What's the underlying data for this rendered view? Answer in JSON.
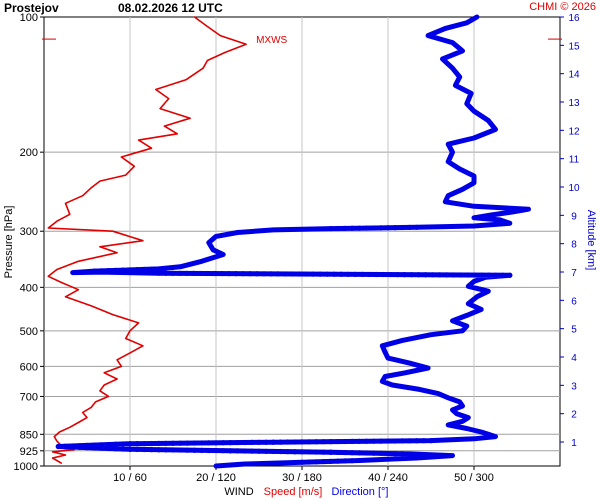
{
  "header": {
    "station": "Prostejov",
    "datetime": "08.02.2026 12 UTC",
    "credit": "CHMI © 2026"
  },
  "chart_data": {
    "type": "line",
    "left_axis": {
      "label": "Pressure [hPa]",
      "ticks": [
        "100",
        "200",
        "300",
        "400",
        "500",
        "600",
        "700",
        "850",
        "925",
        "1000"
      ],
      "scale": "log",
      "range": [
        1000,
        100
      ]
    },
    "right_axis": {
      "label": "Altitude [km]",
      "ticks": [
        "1",
        "2",
        "3",
        "4",
        "5",
        "6",
        "7",
        "8",
        "9",
        "10",
        "11",
        "12",
        "13",
        "14",
        "15",
        "16"
      ]
    },
    "bottom_axis": {
      "ticks": [
        "10 / 60",
        "20 / 120",
        "30 / 180",
        "40 / 240",
        "50 / 300"
      ],
      "speed_range": [
        0,
        60
      ],
      "direction_range": [
        0,
        360
      ]
    },
    "footer": {
      "title": "WIND",
      "speed_label": "Speed [m/s]",
      "direction_label": "Direction [°]"
    },
    "annotation": "MXWS",
    "mxws_pressure": 112,
    "grid": true,
    "series": [
      {
        "name": "Speed [m/s]",
        "color": "#e00000",
        "x_units": "m/s",
        "points": [
          [
            2.0,
            985
          ],
          [
            1.0,
            960
          ],
          [
            2.5,
            945
          ],
          [
            1.0,
            930
          ],
          [
            3.5,
            920
          ],
          [
            2.0,
            900
          ],
          [
            1.5,
            880
          ],
          [
            1.2,
            860
          ],
          [
            1.8,
            840
          ],
          [
            3.0,
            820
          ],
          [
            4.0,
            800
          ],
          [
            5.0,
            780
          ],
          [
            4.5,
            760
          ],
          [
            5.5,
            740
          ],
          [
            6.0,
            720
          ],
          [
            7.5,
            700
          ],
          [
            6.5,
            680
          ],
          [
            7.0,
            660
          ],
          [
            8.5,
            640
          ],
          [
            7.0,
            620
          ],
          [
            9.0,
            600
          ],
          [
            8.5,
            580
          ],
          [
            10.0,
            560
          ],
          [
            11.5,
            540
          ],
          [
            9.5,
            520
          ],
          [
            10.0,
            500
          ],
          [
            11.0,
            480
          ],
          [
            8.0,
            460
          ],
          [
            5.5,
            440
          ],
          [
            2.5,
            420
          ],
          [
            4.0,
            405
          ],
          [
            2.0,
            390
          ],
          [
            0.5,
            378
          ],
          [
            1.5,
            365
          ],
          [
            4.0,
            350
          ],
          [
            8.5,
            335
          ],
          [
            6.5,
            325
          ],
          [
            11.5,
            315
          ],
          [
            8.0,
            300
          ],
          [
            0.5,
            295
          ],
          [
            1.5,
            285
          ],
          [
            3.0,
            275
          ],
          [
            2.5,
            260
          ],
          [
            4.5,
            250
          ],
          [
            5.5,
            240
          ],
          [
            6.5,
            232
          ],
          [
            9.5,
            225
          ],
          [
            10.5,
            215
          ],
          [
            9.0,
            205
          ],
          [
            12.5,
            196
          ],
          [
            11.0,
            188
          ],
          [
            15.5,
            182
          ],
          [
            14.0,
            175
          ],
          [
            17.0,
            168
          ],
          [
            13.5,
            160
          ],
          [
            14.5,
            152
          ],
          [
            13.0,
            145
          ],
          [
            16.5,
            138
          ],
          [
            18.5,
            130
          ],
          [
            19.0,
            125
          ],
          [
            21.0,
            120
          ],
          [
            23.5,
            115
          ],
          [
            20.5,
            110
          ],
          [
            19.0,
            105
          ],
          [
            17.5,
            100
          ]
        ]
      },
      {
        "name": "Direction [°]",
        "color": "#0000e6",
        "x_units": "deg",
        "points": [
          [
            120,
            1000
          ],
          [
            140,
            990
          ],
          [
            175,
            982
          ],
          [
            220,
            972
          ],
          [
            260,
            960
          ],
          [
            285,
            948
          ],
          [
            255,
            940
          ],
          [
            200,
            932
          ],
          [
            130,
            925
          ],
          [
            60,
            918
          ],
          [
            10,
            905
          ],
          [
            60,
            892
          ],
          [
            160,
            885
          ],
          [
            270,
            878
          ],
          [
            300,
            870
          ],
          [
            315,
            860
          ],
          [
            310,
            850
          ],
          [
            305,
            840
          ],
          [
            295,
            825
          ],
          [
            282,
            810
          ],
          [
            292,
            795
          ],
          [
            296,
            780
          ],
          [
            288,
            765
          ],
          [
            285,
            750
          ],
          [
            292,
            735
          ],
          [
            290,
            720
          ],
          [
            282,
            705
          ],
          [
            275,
            690
          ],
          [
            262,
            675
          ],
          [
            243,
            660
          ],
          [
            236,
            648
          ],
          [
            238,
            632
          ],
          [
            252,
            620
          ],
          [
            268,
            605
          ],
          [
            255,
            590
          ],
          [
            240,
            575
          ],
          [
            238,
            558
          ],
          [
            236,
            540
          ],
          [
            250,
            525
          ],
          [
            270,
            510
          ],
          [
            292,
            500
          ],
          [
            295,
            488
          ],
          [
            285,
            475
          ],
          [
            295,
            462
          ],
          [
            305,
            448
          ],
          [
            296,
            435
          ],
          [
            302,
            420
          ],
          [
            310,
            408
          ],
          [
            296,
            398
          ],
          [
            300,
            388
          ],
          [
            308,
            380
          ],
          [
            325,
            376
          ],
          [
            80,
            372
          ],
          [
            40,
            370
          ],
          [
            20,
            371
          ],
          [
            35,
            368
          ],
          [
            80,
            364
          ],
          [
            95,
            360
          ],
          [
            110,
            350
          ],
          [
            125,
            338
          ],
          [
            118,
            330
          ],
          [
            115,
            318
          ],
          [
            120,
            308
          ],
          [
            135,
            302
          ],
          [
            160,
            298
          ],
          [
            200,
            296
          ],
          [
            260,
            294
          ],
          [
            300,
            292
          ],
          [
            325,
            288
          ],
          [
            318,
            283
          ],
          [
            300,
            280
          ],
          [
            312,
            276
          ],
          [
            326,
            272
          ],
          [
            338,
            268
          ],
          [
            300,
            264
          ],
          [
            280,
            258
          ],
          [
            282,
            250
          ],
          [
            292,
            242
          ],
          [
            300,
            234
          ],
          [
            300,
            226
          ],
          [
            290,
            218
          ],
          [
            282,
            210
          ],
          [
            285,
            200
          ],
          [
            282,
            192
          ],
          [
            300,
            186
          ],
          [
            315,
            178
          ],
          [
            310,
            170
          ],
          [
            300,
            162
          ],
          [
            295,
            156
          ],
          [
            298,
            148
          ],
          [
            287,
            142
          ],
          [
            290,
            136
          ],
          [
            285,
            130
          ],
          [
            278,
            124
          ],
          [
            292,
            119
          ],
          [
            285,
            114
          ],
          [
            268,
            110
          ],
          [
            280,
            106
          ],
          [
            295,
            103
          ],
          [
            302,
            100
          ]
        ]
      }
    ]
  }
}
